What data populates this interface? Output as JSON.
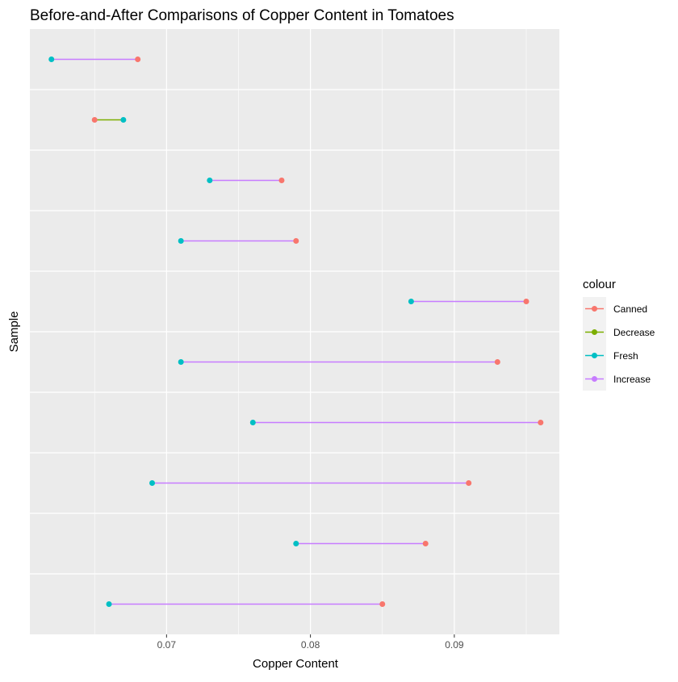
{
  "chart_data": {
    "type": "dumbbell",
    "title": "Before-and-After Comparisons of Copper Content in Tomatoes",
    "xlabel": "Copper Content",
    "ylabel": "Sample",
    "xlim": [
      0.0605,
      0.0973
    ],
    "x_ticks": [
      0.07,
      0.08,
      0.09
    ],
    "x_tick_labels": [
      "0.07",
      "0.08",
      "0.09"
    ],
    "grid": true,
    "legend": {
      "title": "colour",
      "position": "right",
      "entries": [
        {
          "name": "Canned",
          "color": "#F8766D"
        },
        {
          "name": "Decrease",
          "color": "#7CAE00"
        },
        {
          "name": "Fresh",
          "color": "#00BFC4"
        },
        {
          "name": "Increase",
          "color": "#C77CFF"
        }
      ]
    },
    "samples": [
      {
        "fresh": 0.062,
        "canned": 0.068,
        "change": "Increase"
      },
      {
        "fresh": 0.067,
        "canned": 0.065,
        "change": "Decrease"
      },
      {
        "fresh": 0.073,
        "canned": 0.078,
        "change": "Increase"
      },
      {
        "fresh": 0.071,
        "canned": 0.079,
        "change": "Increase"
      },
      {
        "fresh": 0.087,
        "canned": 0.095,
        "change": "Increase"
      },
      {
        "fresh": 0.071,
        "canned": 0.093,
        "change": "Increase"
      },
      {
        "fresh": 0.076,
        "canned": 0.096,
        "change": "Increase"
      },
      {
        "fresh": 0.069,
        "canned": 0.091,
        "change": "Increase"
      },
      {
        "fresh": 0.079,
        "canned": 0.088,
        "change": "Increase"
      },
      {
        "fresh": 0.066,
        "canned": 0.085,
        "change": "Increase"
      }
    ]
  }
}
